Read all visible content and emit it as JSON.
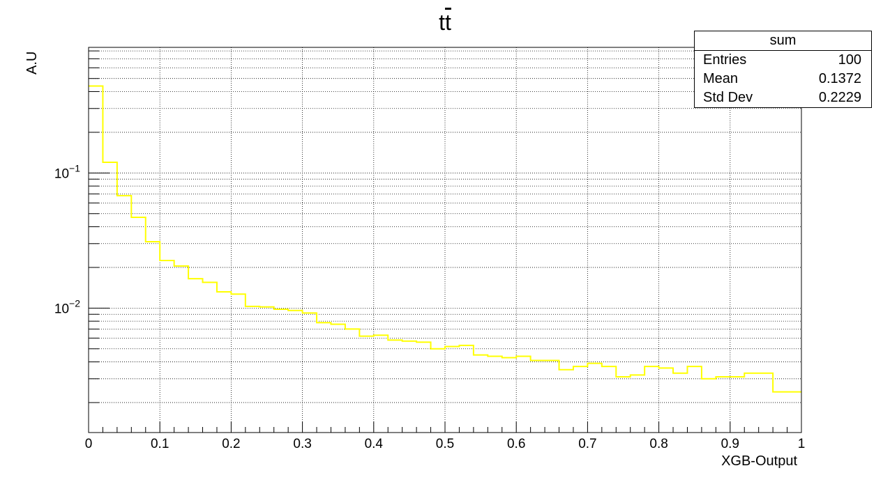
{
  "title": {
    "main": "t",
    "bar": "t"
  },
  "stats_box": {
    "name": "sum",
    "rows": [
      {
        "label": "Entries",
        "value": "100"
      },
      {
        "label": "Mean",
        "value": "0.1372"
      },
      {
        "label": "Std Dev",
        "value": "0.2229"
      }
    ]
  },
  "colors": {
    "line": "#ffff00",
    "frame": "#000000",
    "grid": "#000000"
  },
  "chart_data": {
    "type": "line",
    "style": "step-histogram",
    "xlabel": "XGB-Output",
    "ylabel": "A.U",
    "xlim": [
      0,
      1
    ],
    "ylim": [
      0.0012,
      0.85
    ],
    "yscale": "log",
    "grid": true,
    "x_ticks": [
      "0",
      "0.1",
      "0.2",
      "0.3",
      "0.4",
      "0.5",
      "0.6",
      "0.7",
      "0.8",
      "0.9",
      "1"
    ],
    "y_ticks": [
      "10^-2",
      "10^-1"
    ],
    "bin_width": 0.02,
    "bin_edges_start": 0,
    "values": [
      0.44,
      0.12,
      0.068,
      0.047,
      0.031,
      0.0225,
      0.0205,
      0.0165,
      0.0155,
      0.0132,
      0.0127,
      0.0103,
      0.0102,
      0.0098,
      0.0096,
      0.0092,
      0.0078,
      0.0076,
      0.007,
      0.0062,
      0.0063,
      0.0058,
      0.0057,
      0.0056,
      0.005,
      0.0052,
      0.0053,
      0.0045,
      0.0044,
      0.0043,
      0.0044,
      0.0041,
      0.0041,
      0.0035,
      0.0037,
      0.0039,
      0.0037,
      0.0031,
      0.0032,
      0.0037,
      0.0036,
      0.0033,
      0.0037,
      0.003,
      0.0031,
      0.0031,
      0.0033,
      0.0033,
      0.0024,
      0.0024
    ]
  }
}
